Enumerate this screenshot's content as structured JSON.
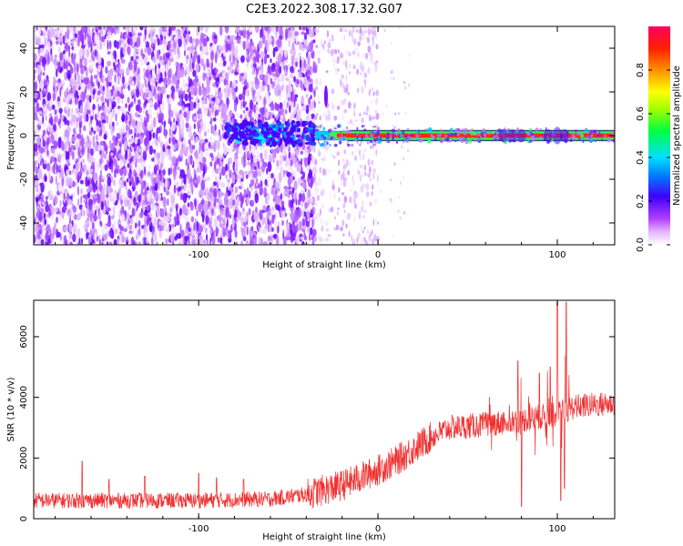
{
  "title": "C2E3.2022.308.17.32.G07",
  "chart_data": [
    {
      "type": "heatmap",
      "xlabel": "Height of straight line (km)",
      "ylabel": "Frequency (Hz)",
      "xlim": [
        -192,
        132
      ],
      "ylim": [
        -50,
        50
      ],
      "x_ticks": [
        -100,
        0,
        100
      ],
      "y_ticks": [
        -40,
        -20,
        0,
        20,
        40
      ],
      "grid": false,
      "colorbar": {
        "label": "Normalized spectral amplitude",
        "range": [
          0,
          1
        ],
        "ticks": [
          0.0,
          0.2,
          0.4,
          0.6,
          0.8
        ],
        "colormap": "rainbow: white, violet, blue, cyan, green, yellow, orange, red"
      },
      "features": {
        "noise_region_km": [
          -192,
          -35
        ],
        "sparse_noise_region_km": [
          -35,
          0
        ],
        "signal_band_frequency_hz": 0,
        "signal_start_km": -85,
        "strong_signal_start_km": -35
      }
    },
    {
      "type": "line",
      "xlabel": "Height of straight line (km)",
      "ylabel": "SNR (10 * v/v)",
      "xlim": [
        -192,
        132
      ],
      "ylim": [
        0,
        7200
      ],
      "x_ticks": [
        -100,
        0,
        100
      ],
      "y_ticks": [
        0,
        2000,
        4000,
        6000
      ],
      "color": "#f03030",
      "grid": false,
      "envelope": {
        "x": [
          -192,
          -150,
          -100,
          -60,
          -40,
          -20,
          0,
          10,
          20,
          30,
          40,
          60,
          80,
          90,
          100,
          110,
          120,
          132
        ],
        "y": [
          600,
          600,
          600,
          650,
          800,
          1100,
          1600,
          1900,
          2300,
          2700,
          3000,
          3100,
          3250,
          3350,
          3450,
          3700,
          3750,
          3800
        ]
      }
    }
  ]
}
